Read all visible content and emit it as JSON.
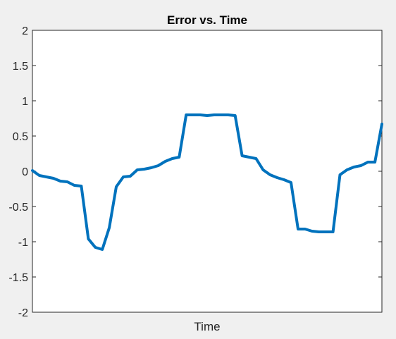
{
  "chart_data": {
    "type": "line",
    "title": "Error vs. Time",
    "xlabel": "Time",
    "ylabel": "",
    "ylim": [
      -2,
      2
    ],
    "yticks": [
      2,
      1.5,
      1,
      0.5,
      0,
      -0.5,
      -1,
      -1.5,
      -2
    ],
    "ytick_labels": [
      "2",
      "1.5",
      "1",
      "0.5",
      "0",
      "-0.5",
      "-1",
      "-1.5",
      "-2"
    ],
    "xlim": [
      0,
      1
    ],
    "grid": false,
    "series": [
      {
        "color": "#0072BD",
        "x": [
          0,
          0.02,
          0.04,
          0.06,
          0.08,
          0.1,
          0.12,
          0.14,
          0.16,
          0.18,
          0.2,
          0.22,
          0.24,
          0.26,
          0.28,
          0.3,
          0.32,
          0.34,
          0.36,
          0.38,
          0.4,
          0.42,
          0.44,
          0.46,
          0.48,
          0.5,
          0.52,
          0.54,
          0.56,
          0.58,
          0.6,
          0.62,
          0.64,
          0.66,
          0.68,
          0.7,
          0.72,
          0.74,
          0.76,
          0.78,
          0.8,
          0.82,
          0.84,
          0.86,
          0.88,
          0.9,
          0.92,
          0.94,
          0.96,
          0.98,
          1.0
        ],
        "values": [
          0.01,
          -0.06,
          -0.08,
          -0.1,
          -0.14,
          -0.15,
          -0.2,
          -0.21,
          -0.96,
          -1.08,
          -1.11,
          -0.8,
          -0.22,
          -0.08,
          -0.07,
          0.02,
          0.03,
          0.05,
          0.08,
          0.14,
          0.18,
          0.2,
          0.8,
          0.8,
          0.8,
          0.79,
          0.8,
          0.8,
          0.8,
          0.79,
          0.22,
          0.2,
          0.18,
          0.02,
          -0.05,
          -0.09,
          -0.12,
          -0.16,
          -0.82,
          -0.82,
          -0.85,
          -0.86,
          -0.86,
          -0.86,
          -0.05,
          0.02,
          0.06,
          0.08,
          0.13,
          0.13,
          0.67
        ]
      }
    ]
  }
}
